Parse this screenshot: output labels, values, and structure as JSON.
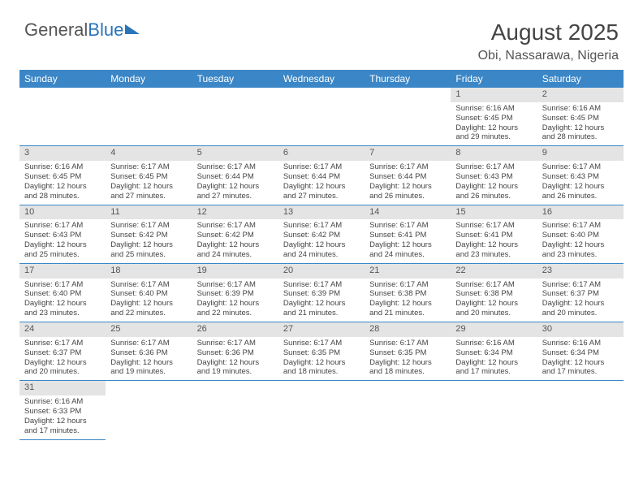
{
  "logo": {
    "part1": "General",
    "part2": "Blue"
  },
  "header": {
    "title": "August 2025",
    "location": "Obi, Nassarawa, Nigeria"
  },
  "colors": {
    "header_bar": "#3b86c6",
    "daynum_bg": "#e4e4e4",
    "text": "#444444",
    "logo_gray": "#555555",
    "logo_blue": "#2a74b8",
    "background": "#ffffff"
  },
  "calendar": {
    "weekdays": [
      "Sunday",
      "Monday",
      "Tuesday",
      "Wednesday",
      "Thursday",
      "Friday",
      "Saturday"
    ],
    "first_weekday_index": 5,
    "num_days": 31,
    "label_prefixes": {
      "sunrise": "Sunrise: ",
      "sunset": "Sunset: ",
      "daylight": "Daylight: "
    },
    "days": [
      {
        "n": 1,
        "sunrise": "6:16 AM",
        "sunset": "6:45 PM",
        "daylight": "12 hours and 29 minutes."
      },
      {
        "n": 2,
        "sunrise": "6:16 AM",
        "sunset": "6:45 PM",
        "daylight": "12 hours and 28 minutes."
      },
      {
        "n": 3,
        "sunrise": "6:16 AM",
        "sunset": "6:45 PM",
        "daylight": "12 hours and 28 minutes."
      },
      {
        "n": 4,
        "sunrise": "6:17 AM",
        "sunset": "6:45 PM",
        "daylight": "12 hours and 27 minutes."
      },
      {
        "n": 5,
        "sunrise": "6:17 AM",
        "sunset": "6:44 PM",
        "daylight": "12 hours and 27 minutes."
      },
      {
        "n": 6,
        "sunrise": "6:17 AM",
        "sunset": "6:44 PM",
        "daylight": "12 hours and 27 minutes."
      },
      {
        "n": 7,
        "sunrise": "6:17 AM",
        "sunset": "6:44 PM",
        "daylight": "12 hours and 26 minutes."
      },
      {
        "n": 8,
        "sunrise": "6:17 AM",
        "sunset": "6:43 PM",
        "daylight": "12 hours and 26 minutes."
      },
      {
        "n": 9,
        "sunrise": "6:17 AM",
        "sunset": "6:43 PM",
        "daylight": "12 hours and 26 minutes."
      },
      {
        "n": 10,
        "sunrise": "6:17 AM",
        "sunset": "6:43 PM",
        "daylight": "12 hours and 25 minutes."
      },
      {
        "n": 11,
        "sunrise": "6:17 AM",
        "sunset": "6:42 PM",
        "daylight": "12 hours and 25 minutes."
      },
      {
        "n": 12,
        "sunrise": "6:17 AM",
        "sunset": "6:42 PM",
        "daylight": "12 hours and 24 minutes."
      },
      {
        "n": 13,
        "sunrise": "6:17 AM",
        "sunset": "6:42 PM",
        "daylight": "12 hours and 24 minutes."
      },
      {
        "n": 14,
        "sunrise": "6:17 AM",
        "sunset": "6:41 PM",
        "daylight": "12 hours and 24 minutes."
      },
      {
        "n": 15,
        "sunrise": "6:17 AM",
        "sunset": "6:41 PM",
        "daylight": "12 hours and 23 minutes."
      },
      {
        "n": 16,
        "sunrise": "6:17 AM",
        "sunset": "6:40 PM",
        "daylight": "12 hours and 23 minutes."
      },
      {
        "n": 17,
        "sunrise": "6:17 AM",
        "sunset": "6:40 PM",
        "daylight": "12 hours and 23 minutes."
      },
      {
        "n": 18,
        "sunrise": "6:17 AM",
        "sunset": "6:40 PM",
        "daylight": "12 hours and 22 minutes."
      },
      {
        "n": 19,
        "sunrise": "6:17 AM",
        "sunset": "6:39 PM",
        "daylight": "12 hours and 22 minutes."
      },
      {
        "n": 20,
        "sunrise": "6:17 AM",
        "sunset": "6:39 PM",
        "daylight": "12 hours and 21 minutes."
      },
      {
        "n": 21,
        "sunrise": "6:17 AM",
        "sunset": "6:38 PM",
        "daylight": "12 hours and 21 minutes."
      },
      {
        "n": 22,
        "sunrise": "6:17 AM",
        "sunset": "6:38 PM",
        "daylight": "12 hours and 20 minutes."
      },
      {
        "n": 23,
        "sunrise": "6:17 AM",
        "sunset": "6:37 PM",
        "daylight": "12 hours and 20 minutes."
      },
      {
        "n": 24,
        "sunrise": "6:17 AM",
        "sunset": "6:37 PM",
        "daylight": "12 hours and 20 minutes."
      },
      {
        "n": 25,
        "sunrise": "6:17 AM",
        "sunset": "6:36 PM",
        "daylight": "12 hours and 19 minutes."
      },
      {
        "n": 26,
        "sunrise": "6:17 AM",
        "sunset": "6:36 PM",
        "daylight": "12 hours and 19 minutes."
      },
      {
        "n": 27,
        "sunrise": "6:17 AM",
        "sunset": "6:35 PM",
        "daylight": "12 hours and 18 minutes."
      },
      {
        "n": 28,
        "sunrise": "6:17 AM",
        "sunset": "6:35 PM",
        "daylight": "12 hours and 18 minutes."
      },
      {
        "n": 29,
        "sunrise": "6:16 AM",
        "sunset": "6:34 PM",
        "daylight": "12 hours and 17 minutes."
      },
      {
        "n": 30,
        "sunrise": "6:16 AM",
        "sunset": "6:34 PM",
        "daylight": "12 hours and 17 minutes."
      },
      {
        "n": 31,
        "sunrise": "6:16 AM",
        "sunset": "6:33 PM",
        "daylight": "12 hours and 17 minutes."
      }
    ]
  }
}
